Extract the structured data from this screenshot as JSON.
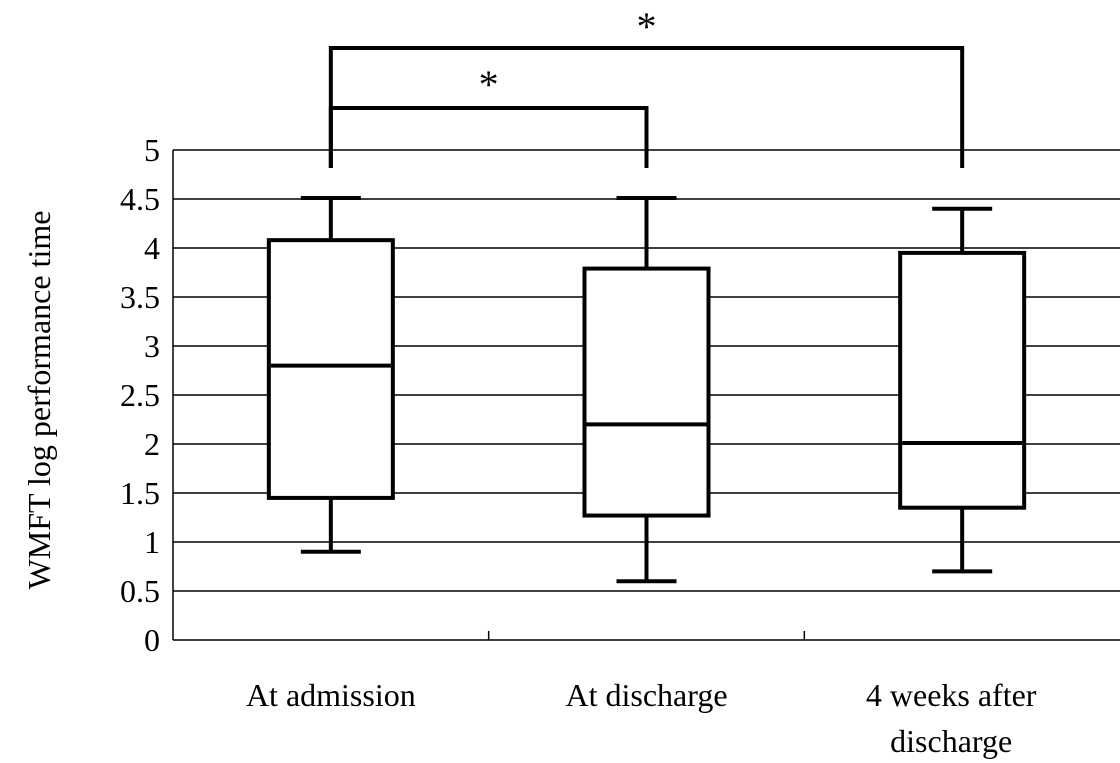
{
  "chart_data": {
    "type": "box",
    "ylabel": "WMFT log performance time",
    "xlabel": "",
    "ylim": [
      0,
      5
    ],
    "yticks": [
      {
        "value": 0,
        "label": "0"
      },
      {
        "value": 0.5,
        "label": "0.5"
      },
      {
        "value": 1,
        "label": "1"
      },
      {
        "value": 1.5,
        "label": "1.5"
      },
      {
        "value": 2,
        "label": "2"
      },
      {
        "value": 2.5,
        "label": "2.5"
      },
      {
        "value": 3,
        "label": "3"
      },
      {
        "value": 3.5,
        "label": "3.5"
      },
      {
        "value": 4,
        "label": "4"
      },
      {
        "value": 4.5,
        "label": "4.5"
      },
      {
        "value": 5,
        "label": "5"
      }
    ],
    "grid": true,
    "categories": [
      {
        "label_lines": [
          "At admission"
        ],
        "min": 0.9,
        "q1": 1.45,
        "median": 2.8,
        "q3": 4.08,
        "max": 4.51
      },
      {
        "label_lines": [
          "At discharge"
        ],
        "min": 0.6,
        "q1": 1.27,
        "median": 2.2,
        "q3": 3.79,
        "max": 4.51
      },
      {
        "label_lines": [
          "4 weeks after",
          "discharge"
        ],
        "min": 0.7,
        "q1": 1.35,
        "median": 2.01,
        "q3": 3.95,
        "max": 4.4
      }
    ],
    "significance": [
      {
        "from": 0,
        "to": 1,
        "label": "*"
      },
      {
        "from": 0,
        "to": 2,
        "label": "*"
      }
    ]
  }
}
